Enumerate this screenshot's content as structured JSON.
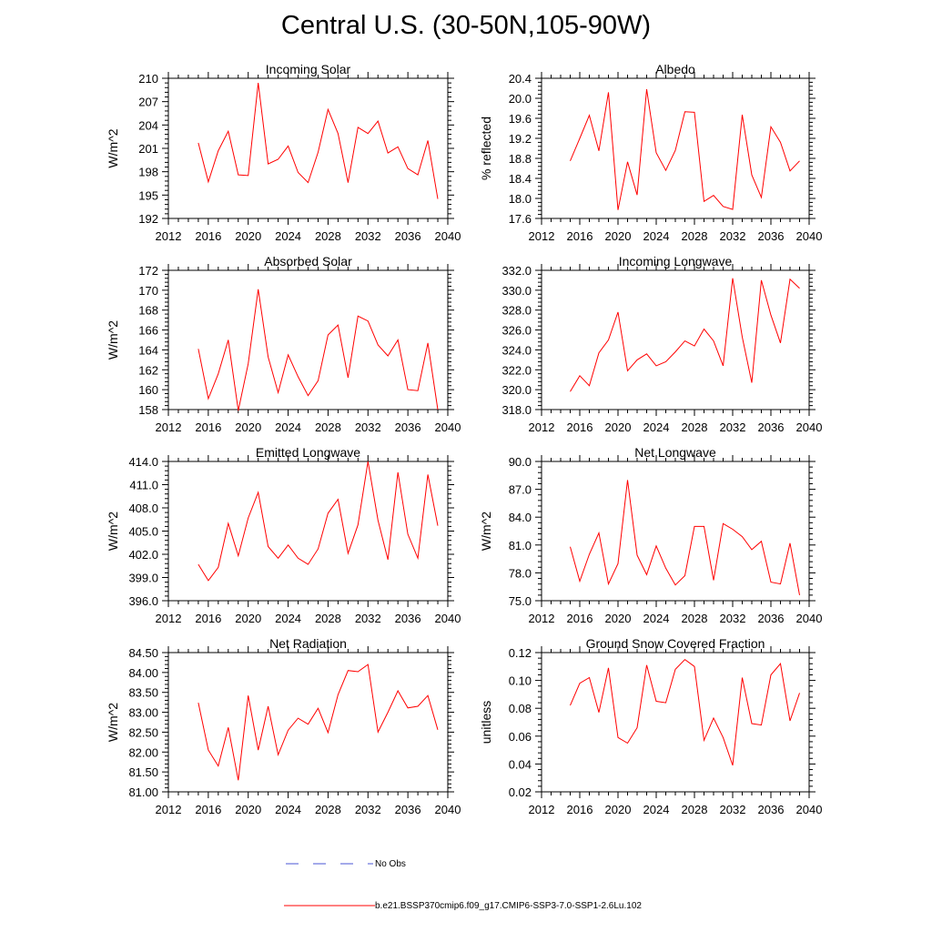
{
  "figure": {
    "title": "Central U.S. (30-50N,105-90W)"
  },
  "colors": {
    "series": "#ff0000",
    "obs": "#4a55d6",
    "axis": "#000000"
  },
  "legend": {
    "obs_label": "No Obs",
    "model_label": "b.e21.BSSP370cmip6.f09_g17.CMIP6-SSP3-7.0-SSP1-2.6Lu.102"
  },
  "chart_data": [
    {
      "type": "line",
      "title": "Incoming Solar",
      "ylabel": "W/m^2",
      "xlim": [
        2012,
        2040
      ],
      "ylim": [
        192,
        210
      ],
      "xticks": [
        "2012",
        "2016",
        "2020",
        "2024",
        "2028",
        "2032",
        "2036",
        "2040"
      ],
      "yticks": [
        "192",
        "195",
        "198",
        "201",
        "204",
        "207",
        "210"
      ],
      "grid": false,
      "x": [
        2015,
        2016,
        2017,
        2018,
        2019,
        2020,
        2021,
        2022,
        2023,
        2024,
        2025,
        2026,
        2027,
        2028,
        2029,
        2030,
        2031,
        2032,
        2033,
        2034,
        2035,
        2036,
        2037,
        2038,
        2039
      ],
      "series": [
        {
          "values": [
            201.7,
            196.7,
            200.7,
            203.2,
            197.6,
            197.5,
            209.4,
            199.0,
            199.6,
            201.3,
            197.9,
            196.6,
            200.5,
            206.0,
            202.9,
            196.6,
            203.7,
            202.9,
            204.5,
            200.4,
            201.2,
            198.4,
            197.6,
            202.0,
            194.5
          ]
        }
      ]
    },
    {
      "type": "line",
      "title": "Albedo",
      "ylabel": "% reflected",
      "xlim": [
        2012,
        2040
      ],
      "ylim": [
        17.6,
        20.4
      ],
      "xticks": [
        "2012",
        "2016",
        "2020",
        "2024",
        "2028",
        "2032",
        "2036",
        "2040"
      ],
      "yticks": [
        "17.6",
        "18.0",
        "18.4",
        "18.8",
        "19.2",
        "19.6",
        "20.0",
        "20.4"
      ],
      "grid": false,
      "x": [
        2015,
        2016,
        2017,
        2018,
        2019,
        2020,
        2021,
        2022,
        2023,
        2024,
        2025,
        2026,
        2027,
        2028,
        2029,
        2030,
        2031,
        2032,
        2033,
        2034,
        2035,
        2036,
        2037,
        2038,
        2039
      ],
      "series": [
        {
          "values": [
            18.75,
            19.2,
            19.66,
            18.95,
            20.12,
            17.77,
            18.73,
            18.07,
            20.18,
            18.91,
            18.56,
            18.96,
            19.73,
            19.72,
            17.94,
            18.06,
            17.84,
            17.78,
            19.67,
            18.47,
            18.02,
            19.43,
            19.12,
            18.55,
            18.75
          ]
        }
      ]
    },
    {
      "type": "line",
      "title": "Absorbed Solar",
      "ylabel": "W/m^2",
      "xlim": [
        2012,
        2040
      ],
      "ylim": [
        158,
        172
      ],
      "xticks": [
        "2012",
        "2016",
        "2020",
        "2024",
        "2028",
        "2032",
        "2036",
        "2040"
      ],
      "yticks": [
        "158",
        "160",
        "162",
        "164",
        "166",
        "168",
        "170",
        "172"
      ],
      "grid": false,
      "x": [
        2015,
        2016,
        2017,
        2018,
        2019,
        2020,
        2021,
        2022,
        2023,
        2024,
        2025,
        2026,
        2027,
        2028,
        2029,
        2030,
        2031,
        2032,
        2033,
        2034,
        2035,
        2036,
        2037,
        2038,
        2039
      ],
      "series": [
        {
          "values": [
            164.1,
            159.1,
            161.6,
            165.0,
            157.9,
            162.6,
            170.1,
            163.3,
            159.7,
            163.5,
            161.3,
            159.4,
            160.9,
            165.5,
            166.5,
            161.2,
            167.4,
            166.9,
            164.5,
            163.4,
            165.0,
            160.0,
            159.9,
            164.7,
            158.0
          ]
        }
      ]
    },
    {
      "type": "line",
      "title": "Incoming Longwave",
      "ylabel": "",
      "xlim": [
        2012,
        2040
      ],
      "ylim": [
        318.0,
        332.0
      ],
      "xticks": [
        "2012",
        "2016",
        "2020",
        "2024",
        "2028",
        "2032",
        "2036",
        "2040"
      ],
      "yticks": [
        "318.0",
        "320.0",
        "322.0",
        "324.0",
        "326.0",
        "328.0",
        "330.0",
        "332.0"
      ],
      "grid": false,
      "x": [
        2015,
        2016,
        2017,
        2018,
        2019,
        2020,
        2021,
        2022,
        2023,
        2024,
        2025,
        2026,
        2027,
        2028,
        2029,
        2030,
        2031,
        2032,
        2033,
        2034,
        2035,
        2036,
        2037,
        2038,
        2039
      ],
      "series": [
        {
          "values": [
            319.8,
            321.4,
            320.4,
            323.7,
            325.0,
            327.8,
            321.9,
            323.0,
            323.6,
            322.4,
            322.8,
            323.8,
            324.9,
            324.4,
            326.1,
            324.9,
            322.4,
            331.2,
            325.3,
            320.7,
            331.0,
            327.5,
            324.7,
            331.1,
            330.2
          ]
        }
      ]
    },
    {
      "type": "line",
      "title": "Emitted Longwave",
      "ylabel": "W/m^2",
      "xlim": [
        2012,
        2040
      ],
      "ylim": [
        396.0,
        414.0
      ],
      "xticks": [
        "2012",
        "2016",
        "2020",
        "2024",
        "2028",
        "2032",
        "2036",
        "2040"
      ],
      "yticks": [
        "396.0",
        "399.0",
        "402.0",
        "405.0",
        "408.0",
        "411.0",
        "414.0"
      ],
      "grid": false,
      "x": [
        2015,
        2016,
        2017,
        2018,
        2019,
        2020,
        2021,
        2022,
        2023,
        2024,
        2025,
        2026,
        2027,
        2028,
        2029,
        2030,
        2031,
        2032,
        2033,
        2034,
        2035,
        2036,
        2037,
        2038,
        2039
      ],
      "series": [
        {
          "values": [
            400.7,
            398.6,
            400.3,
            406.0,
            401.8,
            406.7,
            410.0,
            403.0,
            401.5,
            403.2,
            401.5,
            400.7,
            402.7,
            407.3,
            409.1,
            402.1,
            405.8,
            414.0,
            406.4,
            401.3,
            412.6,
            404.6,
            401.5,
            412.3,
            405.7
          ]
        }
      ]
    },
    {
      "type": "line",
      "title": "Net Longwave",
      "ylabel": "W/m^2",
      "xlim": [
        2012,
        2040
      ],
      "ylim": [
        75.0,
        90.0
      ],
      "xticks": [
        "2012",
        "2016",
        "2020",
        "2024",
        "2028",
        "2032",
        "2036",
        "2040"
      ],
      "yticks": [
        "75.0",
        "78.0",
        "81.0",
        "84.0",
        "87.0",
        "90.0"
      ],
      "grid": false,
      "x": [
        2015,
        2016,
        2017,
        2018,
        2019,
        2020,
        2021,
        2022,
        2023,
        2024,
        2025,
        2026,
        2027,
        2028,
        2029,
        2030,
        2031,
        2032,
        2033,
        2034,
        2035,
        2036,
        2037,
        2038,
        2039
      ],
      "series": [
        {
          "values": [
            80.8,
            77.1,
            80.0,
            82.3,
            76.8,
            79.0,
            88.0,
            79.9,
            77.8,
            80.9,
            78.5,
            76.7,
            77.7,
            83.0,
            83.0,
            77.2,
            83.3,
            82.7,
            81.9,
            80.5,
            81.4,
            77.0,
            76.8,
            81.2,
            75.6
          ]
        }
      ]
    },
    {
      "type": "line",
      "title": "Net Radiation",
      "ylabel": "W/m^2",
      "xlim": [
        2012,
        2040
      ],
      "ylim": [
        81.0,
        84.5
      ],
      "xticks": [
        "2012",
        "2016",
        "2020",
        "2024",
        "2028",
        "2032",
        "2036",
        "2040"
      ],
      "yticks": [
        "81.00",
        "81.50",
        "82.00",
        "82.50",
        "83.00",
        "83.50",
        "84.00",
        "84.50"
      ],
      "grid": false,
      "x": [
        2015,
        2016,
        2017,
        2018,
        2019,
        2020,
        2021,
        2022,
        2023,
        2024,
        2025,
        2026,
        2027,
        2028,
        2029,
        2030,
        2031,
        2032,
        2033,
        2034,
        2035,
        2036,
        2037,
        2038,
        2039
      ],
      "series": [
        {
          "values": [
            83.24,
            82.05,
            81.65,
            82.62,
            81.29,
            83.42,
            82.05,
            83.15,
            81.93,
            82.55,
            82.85,
            82.7,
            83.1,
            82.49,
            83.44,
            84.05,
            84.02,
            84.2,
            82.5,
            83.0,
            83.54,
            83.11,
            83.15,
            83.42,
            82.56
          ]
        }
      ]
    },
    {
      "type": "line",
      "title": "Ground Snow Covered Fraction",
      "ylabel": "unitless",
      "xlim": [
        2012,
        2040
      ],
      "ylim": [
        0.02,
        0.12
      ],
      "xticks": [
        "2012",
        "2016",
        "2020",
        "2024",
        "2028",
        "2032",
        "2036",
        "2040"
      ],
      "yticks": [
        "0.02",
        "0.04",
        "0.06",
        "0.08",
        "0.10",
        "0.12"
      ],
      "grid": false,
      "x": [
        2015,
        2016,
        2017,
        2018,
        2019,
        2020,
        2021,
        2022,
        2023,
        2024,
        2025,
        2026,
        2027,
        2028,
        2029,
        2030,
        2031,
        2032,
        2033,
        2034,
        2035,
        2036,
        2037,
        2038,
        2039
      ],
      "series": [
        {
          "values": [
            0.082,
            0.098,
            0.102,
            0.077,
            0.109,
            0.059,
            0.055,
            0.066,
            0.111,
            0.085,
            0.084,
            0.108,
            0.115,
            0.11,
            0.057,
            0.073,
            0.059,
            0.039,
            0.102,
            0.069,
            0.068,
            0.104,
            0.112,
            0.071,
            0.091
          ]
        }
      ]
    }
  ]
}
